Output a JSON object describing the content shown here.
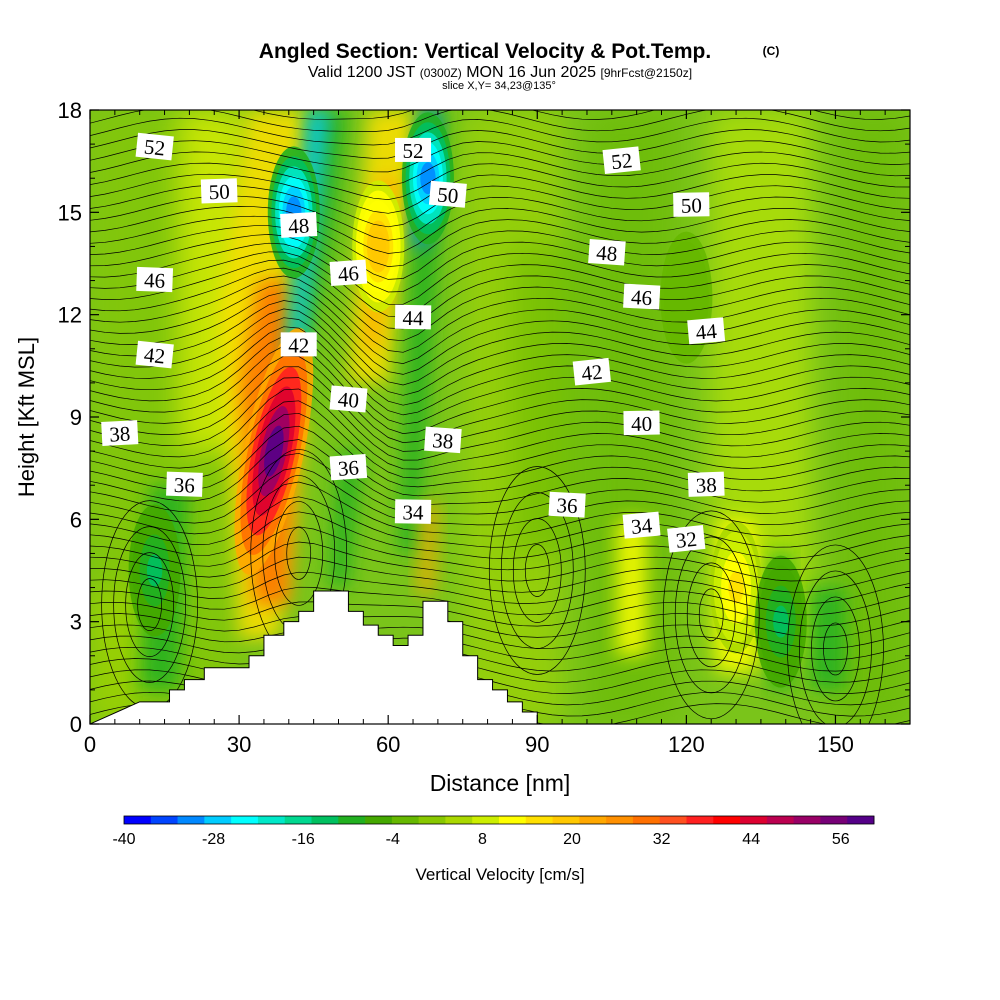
{
  "title": {
    "main": "Angled Section: Vertical Velocity & Pot.Temp.",
    "copyright": "(C)",
    "valid_prefix": "Valid 1200 JST",
    "valid_utc": "(0300Z)",
    "valid_date": "MON 16 Jun 2025",
    "forecast": "[9hrFcst@2150z]",
    "slice": "slice X,Y= 34,23@135°"
  },
  "chart_data": {
    "type": "heatmap",
    "xlabel": "Distance [nm]",
    "ylabel": "Height [Kft MSL]",
    "xlim": [
      0,
      165
    ],
    "ylim": [
      0,
      18
    ],
    "x_ticks": [
      0,
      30,
      60,
      90,
      120,
      150
    ],
    "y_ticks": [
      0,
      3,
      6,
      9,
      12,
      15,
      18
    ],
    "colorbar": {
      "label": "Vertical Velocity [cm/s]",
      "min": -40,
      "max": 60,
      "tick_labels": [
        "-40",
        "-28",
        "-16",
        "-4",
        "8",
        "20",
        "32",
        "44",
        "56"
      ],
      "colors": [
        "#0000ff",
        "#0044ff",
        "#0088ff",
        "#00ccff",
        "#00ffff",
        "#00e8c8",
        "#00d890",
        "#00c060",
        "#22b020",
        "#44a800",
        "#66b800",
        "#88c800",
        "#aad800",
        "#ccee00",
        "#ffff00",
        "#ffe000",
        "#ffc800",
        "#ffa800",
        "#ff9000",
        "#ff7000",
        "#ff5020",
        "#ff2020",
        "#ff0000",
        "#dd0030",
        "#bb0050",
        "#990066",
        "#770077",
        "#550088"
      ]
    },
    "velocity_features": [
      {
        "x": 37,
        "y": 8.0,
        "value": 60,
        "note": "updraft core"
      },
      {
        "x": 58,
        "y": 14.0,
        "value": 20
      },
      {
        "x": 41,
        "y": 15.0,
        "value": -30
      },
      {
        "x": 68,
        "y": 16.0,
        "value": -30
      },
      {
        "x": 13,
        "y": 4.5,
        "value": -12
      },
      {
        "x": 130,
        "y": 4.0,
        "value": 14
      },
      {
        "x": 139,
        "y": 3.0,
        "value": -12
      },
      {
        "x": 120,
        "y": 12.5,
        "value": -4
      }
    ],
    "theta_contours": [
      {
        "label": "32",
        "x": 120,
        "y": 5.4
      },
      {
        "label": "34",
        "x": 65,
        "y": 6.2
      },
      {
        "label": "34",
        "x": 111,
        "y": 5.8
      },
      {
        "label": "36",
        "x": 19,
        "y": 7.0
      },
      {
        "label": "36",
        "x": 52,
        "y": 7.5
      },
      {
        "label": "36",
        "x": 96,
        "y": 6.4
      },
      {
        "label": "38",
        "x": 6,
        "y": 8.5
      },
      {
        "label": "38",
        "x": 71,
        "y": 8.3
      },
      {
        "label": "38",
        "x": 124,
        "y": 7.0
      },
      {
        "label": "40",
        "x": 52,
        "y": 9.5
      },
      {
        "label": "40",
        "x": 111,
        "y": 8.8
      },
      {
        "label": "42",
        "x": 13,
        "y": 10.8
      },
      {
        "label": "42",
        "x": 42,
        "y": 11.1
      },
      {
        "label": "42",
        "x": 101,
        "y": 10.3
      },
      {
        "label": "44",
        "x": 65,
        "y": 11.9
      },
      {
        "label": "44",
        "x": 124,
        "y": 11.5
      },
      {
        "label": "46",
        "x": 13,
        "y": 13.0
      },
      {
        "label": "46",
        "x": 52,
        "y": 13.2
      },
      {
        "label": "46",
        "x": 111,
        "y": 12.5
      },
      {
        "label": "48",
        "x": 42,
        "y": 14.6
      },
      {
        "label": "48",
        "x": 104,
        "y": 13.8
      },
      {
        "label": "50",
        "x": 26,
        "y": 15.6
      },
      {
        "label": "50",
        "x": 72,
        "y": 15.5
      },
      {
        "label": "50",
        "x": 121,
        "y": 15.2
      },
      {
        "label": "52",
        "x": 13,
        "y": 16.9
      },
      {
        "label": "52",
        "x": 65,
        "y": 16.8
      },
      {
        "label": "52",
        "x": 107,
        "y": 16.5
      }
    ],
    "terrain_steps": [
      [
        0,
        0
      ],
      [
        10,
        0.65
      ],
      [
        16,
        0.65
      ],
      [
        16,
        1.0
      ],
      [
        19,
        1.0
      ],
      [
        19,
        1.3
      ],
      [
        23,
        1.3
      ],
      [
        23,
        1.65
      ],
      [
        32,
        1.65
      ],
      [
        32,
        2.0
      ],
      [
        35,
        2.0
      ],
      [
        35,
        2.6
      ],
      [
        39,
        2.6
      ],
      [
        39,
        3.0
      ],
      [
        42,
        3.0
      ],
      [
        42,
        3.3
      ],
      [
        45,
        3.3
      ],
      [
        45,
        3.9
      ],
      [
        52,
        3.9
      ],
      [
        52,
        3.3
      ],
      [
        55,
        3.3
      ],
      [
        55,
        2.9
      ],
      [
        58,
        2.9
      ],
      [
        58,
        2.6
      ],
      [
        61,
        2.6
      ],
      [
        61,
        2.3
      ],
      [
        64,
        2.3
      ],
      [
        64,
        2.6
      ],
      [
        67,
        2.6
      ],
      [
        67,
        3.6
      ],
      [
        72,
        3.6
      ],
      [
        72,
        3.0
      ],
      [
        75,
        3.0
      ],
      [
        75,
        2.0
      ],
      [
        78,
        2.0
      ],
      [
        78,
        1.3
      ],
      [
        81,
        1.3
      ],
      [
        81,
        1.0
      ],
      [
        84,
        1.0
      ],
      [
        84,
        0.65
      ],
      [
        87,
        0.65
      ],
      [
        87,
        0.35
      ],
      [
        90,
        0.35
      ],
      [
        90,
        0
      ]
    ]
  }
}
